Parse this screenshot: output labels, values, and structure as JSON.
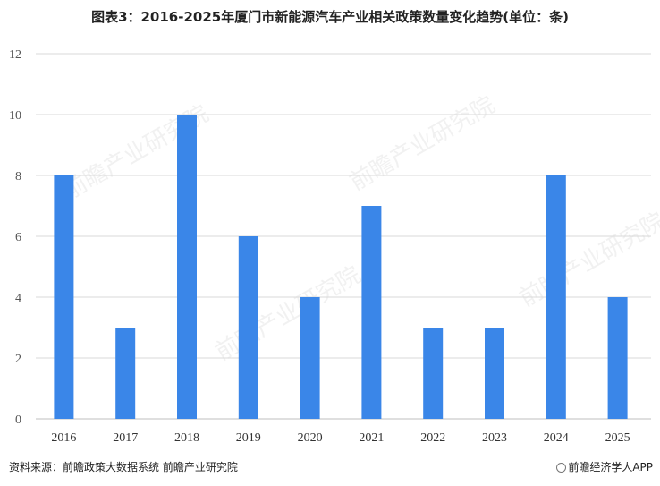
{
  "title": "图表3：2016-2025年厦门市新能源汽车产业相关政策数量变化趋势(单位：条)",
  "chart_data": {
    "type": "bar",
    "categories": [
      "2016",
      "2017",
      "2018",
      "2019",
      "2020",
      "2021",
      "2022",
      "2023",
      "2024",
      "2025"
    ],
    "values": [
      8,
      3,
      10,
      6,
      4,
      7,
      3,
      3,
      8,
      4
    ],
    "ylim": [
      0,
      12
    ],
    "yticks": [
      0,
      2,
      4,
      6,
      8,
      10,
      12
    ],
    "grid": true,
    "bar_color": "#3a86e8"
  },
  "footer": {
    "source": "资料来源：前瞻政策大数据系统 前瞻产业研究院",
    "brand": "前瞻经济学人APP"
  },
  "watermark": "前瞻产业研究院",
  "colors": {
    "grid": "#d9d9d9",
    "axis": "#bfbfbf"
  }
}
